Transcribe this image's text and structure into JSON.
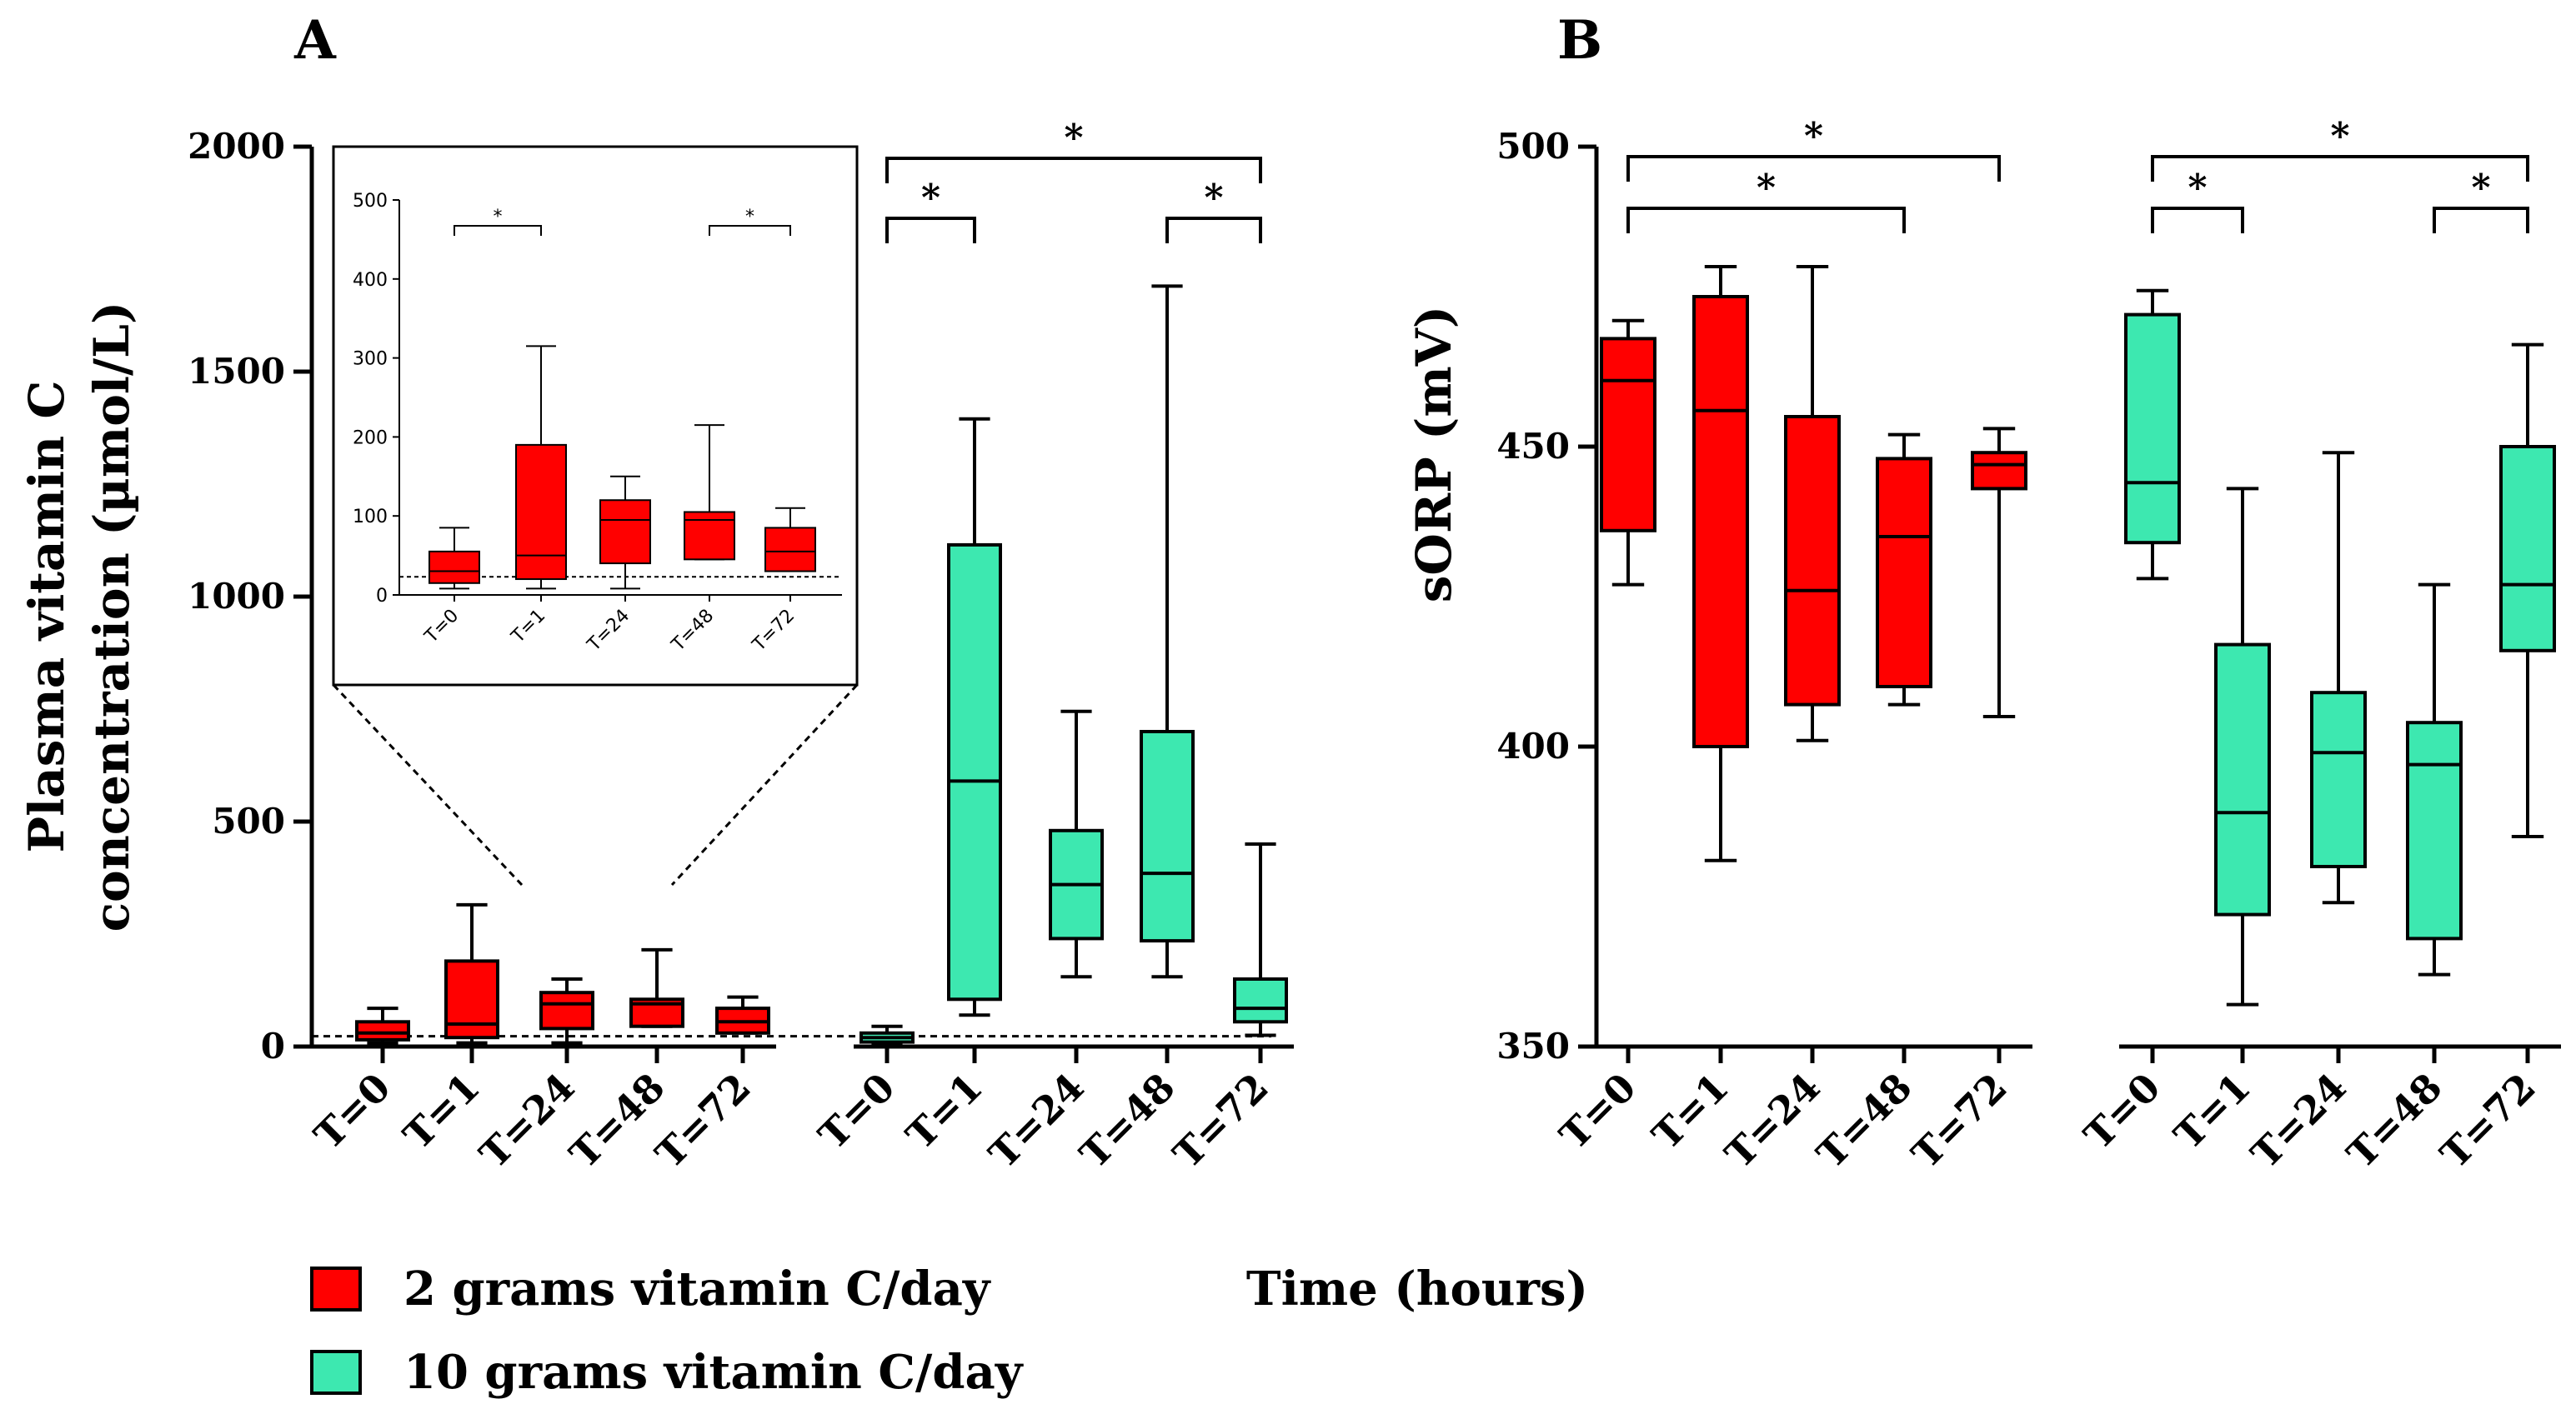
{
  "legend": [
    {
      "label": "2 grams vitamin C/day",
      "color": "#ff0000"
    },
    {
      "label": "10 grams vitamin C/day",
      "color": "#3de8b0"
    }
  ],
  "xlabel": "Time (hours)",
  "chart_data": [
    {
      "panel": "A",
      "type": "box",
      "ylabel": [
        "Plasma vitamin C",
        "concentration (µmol/L)"
      ],
      "ylim": [
        0,
        2000
      ],
      "yticks": [
        0,
        500,
        1000,
        1500,
        2000
      ],
      "reference_line": 23,
      "groups": [
        {
          "name": "2 grams vitamin C/day",
          "color": "#ff0000",
          "boxes": [
            {
              "label": "T=0",
              "min": 8,
              "q1": 15,
              "median": 30,
              "q3": 55,
              "max": 85
            },
            {
              "label": "T=1",
              "min": 8,
              "q1": 20,
              "median": 50,
              "q3": 190,
              "max": 315
            },
            {
              "label": "T=24",
              "min": 8,
              "q1": 40,
              "median": 95,
              "q3": 120,
              "max": 150
            },
            {
              "label": "T=48",
              "min": 45,
              "q1": 45,
              "median": 95,
              "q3": 105,
              "max": 215
            },
            {
              "label": "T=72",
              "min": 30,
              "q1": 30,
              "median": 55,
              "q3": 85,
              "max": 110
            }
          ]
        },
        {
          "name": "10 grams vitamin C/day",
          "color": "#3de8b0",
          "boxes": [
            {
              "label": "T=0",
              "min": 5,
              "q1": 10,
              "median": 20,
              "q3": 30,
              "max": 45
            },
            {
              "label": "T=1",
              "min": 70,
              "q1": 105,
              "median": 590,
              "q3": 1115,
              "max": 1395
            },
            {
              "label": "T=24",
              "min": 155,
              "q1": 240,
              "median": 360,
              "q3": 480,
              "max": 745
            },
            {
              "label": "T=48",
              "min": 155,
              "q1": 235,
              "median": 385,
              "q3": 700,
              "max": 1690
            },
            {
              "label": "T=72",
              "min": 25,
              "q1": 55,
              "median": 85,
              "q3": 150,
              "max": 450
            }
          ]
        }
      ],
      "significance": [
        {
          "from": "10g T=0",
          "to": "10g T=72",
          "label": "*"
        },
        {
          "from": "10g T=0",
          "to": "10g T=1",
          "label": "*"
        },
        {
          "from": "10g T=48",
          "to": "10g T=72",
          "label": "*"
        }
      ],
      "inset": {
        "ylim": [
          0,
          500
        ],
        "yticks": [
          0,
          100,
          200,
          300,
          400,
          500
        ],
        "reference_line": 23,
        "significance": [
          {
            "from": "T=0",
            "to": "T=1",
            "label": "*"
          },
          {
            "from": "T=48",
            "to": "T=72",
            "label": "*"
          }
        ]
      }
    },
    {
      "panel": "B",
      "type": "box",
      "ylabel": [
        "sORP (mV)"
      ],
      "ylim": [
        350,
        500
      ],
      "yticks": [
        350,
        400,
        450,
        500
      ],
      "groups": [
        {
          "name": "2 grams vitamin C/day",
          "color": "#ff0000",
          "boxes": [
            {
              "label": "T=0",
              "min": 427,
              "q1": 436,
              "median": 461,
              "q3": 468,
              "max": 471
            },
            {
              "label": "T=1",
              "min": 381,
              "q1": 400,
              "median": 456,
              "q3": 475,
              "max": 480
            },
            {
              "label": "T=24",
              "min": 401,
              "q1": 407,
              "median": 426,
              "q3": 455,
              "max": 480
            },
            {
              "label": "T=48",
              "min": 407,
              "q1": 410,
              "median": 435,
              "q3": 448,
              "max": 452
            },
            {
              "label": "T=72",
              "min": 405,
              "q1": 443,
              "median": 447,
              "q3": 449,
              "max": 453
            }
          ]
        },
        {
          "name": "10 grams vitamin C/day",
          "color": "#3de8b0",
          "boxes": [
            {
              "label": "T=0",
              "min": 428,
              "q1": 434,
              "median": 444,
              "q3": 472,
              "max": 476
            },
            {
              "label": "T=1",
              "min": 357,
              "q1": 372,
              "median": 389,
              "q3": 417,
              "max": 443
            },
            {
              "label": "T=24",
              "min": 374,
              "q1": 380,
              "median": 399,
              "q3": 409,
              "max": 449
            },
            {
              "label": "T=48",
              "min": 362,
              "q1": 368,
              "median": 397,
              "q3": 404,
              "max": 427
            },
            {
              "label": "T=72",
              "min": 385,
              "q1": 416,
              "median": 427,
              "q3": 450,
              "max": 467
            }
          ]
        }
      ],
      "significance": [
        {
          "from": "2g T=0",
          "to": "2g T=72",
          "label": "*"
        },
        {
          "from": "2g T=0",
          "to": "2g T=48",
          "label": "*"
        },
        {
          "from": "10g T=0",
          "to": "10g T=72",
          "label": "*"
        },
        {
          "from": "10g T=0",
          "to": "10g T=1",
          "label": "*"
        },
        {
          "from": "10g T=48",
          "to": "10g T=72",
          "label": "*"
        }
      ]
    }
  ]
}
